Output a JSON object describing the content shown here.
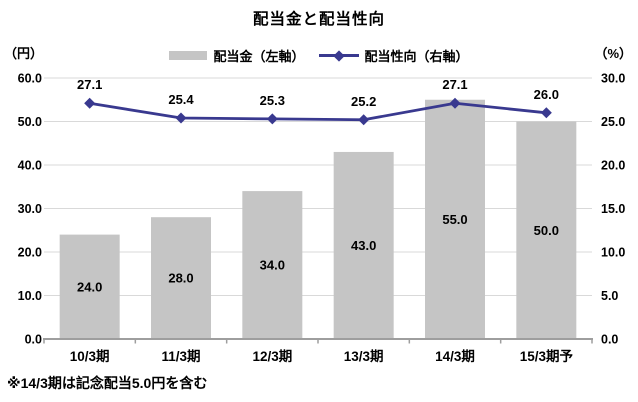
{
  "title": "配当金と配当性向",
  "legend": {
    "bar_label": "配当金（左軸）",
    "line_label": "配当性向（右軸）"
  },
  "axes": {
    "left_unit": "（円）",
    "right_unit": "（%）"
  },
  "footnote": "※14/3期は記念配当5.0円を含む",
  "colors": {
    "bar": "#c5c5c5",
    "line": "#39398f",
    "grid": "#d9d9d9",
    "axis": "#9e9e9e",
    "text": "#000000"
  },
  "chart_data": {
    "type": "combo-bar-line",
    "categories": [
      "10/3期",
      "11/3期",
      "12/3期",
      "13/3期",
      "14/3期",
      "15/3期予"
    ],
    "series": [
      {
        "name": "配当金（左軸）",
        "type": "bar",
        "axis": "left",
        "unit": "円",
        "values": [
          24.0,
          28.0,
          34.0,
          43.0,
          55.0,
          50.0
        ]
      },
      {
        "name": "配当性向（右軸）",
        "type": "line",
        "axis": "right",
        "unit": "%",
        "marker": "diamond",
        "values": [
          27.1,
          25.4,
          25.3,
          25.2,
          27.1,
          26.0
        ]
      }
    ],
    "title": "配当金と配当性向",
    "left_axis": {
      "label": "（円）",
      "min": 0,
      "max": 60,
      "step": 10
    },
    "right_axis": {
      "label": "（%）",
      "min": 0,
      "max": 30,
      "step": 5
    },
    "grid": true,
    "legend_position": "top",
    "footnote": "※14/3期は記念配当5.0円を含む"
  }
}
